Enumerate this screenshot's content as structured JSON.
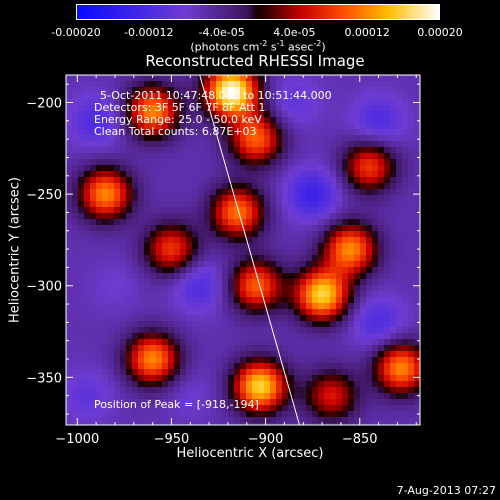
{
  "colorbar": {
    "ticks": [
      "-0.00020",
      "-0.00012",
      "-4.0e-05",
      "4.0e-05",
      "0.00012",
      "0.00020"
    ],
    "tick_values": [
      -0.0002,
      -0.00012,
      -4e-05,
      4e-05,
      0.00012,
      0.0002
    ],
    "units_prefix": "(photons cm",
    "units_exp1": "-2",
    "units_mid1": " s",
    "units_exp2": "-1",
    "units_mid2": " asec",
    "units_exp3": "-2",
    "units_suffix": ")",
    "range": [
      -0.0002,
      0.0002
    ]
  },
  "info": {
    "time": "5-Oct-2011 10:47:48.000 to 10:51:44.000",
    "detectors": "Detectors: 3F 5F 6F 7F 8F  Att 1",
    "energy": "Energy Range: 25.0 - 50.0 keV",
    "clean": "Clean    Total counts: 6.87E+03",
    "peak": "Position of Peak = [-918,-194]"
  },
  "timestamp": "7-Aug-2013 07:27",
  "chart_data": {
    "type": "heatmap",
    "title": "Reconstructed RHESSI Image",
    "xlabel": "Heliocentric X (arcsec)",
    "ylabel": "Heliocentric Y (arcsec)",
    "xlim": [
      -1006,
      -818
    ],
    "ylim": [
      -376,
      -185
    ],
    "x_ticks": [
      -1000,
      -950,
      -900,
      -850
    ],
    "y_ticks": [
      -200,
      -250,
      -300,
      -350
    ],
    "x_tick_labels": [
      "−1000",
      "−950",
      "−900",
      "−850"
    ],
    "y_tick_labels": [
      "−200",
      "−250",
      "−300",
      "−350"
    ],
    "peak_position": [
      -918,
      -194
    ],
    "limb_line": [
      [
        -935,
        -185
      ],
      [
        -882,
        -376
      ]
    ],
    "blobs": [
      {
        "x": -918,
        "y": -194,
        "value": 0.0002
      },
      {
        "x": -960,
        "y": -205,
        "value": 0.00012
      },
      {
        "x": -905,
        "y": -220,
        "value": 0.0001
      },
      {
        "x": -915,
        "y": -260,
        "value": 0.00011
      },
      {
        "x": -905,
        "y": -300,
        "value": 0.0001
      },
      {
        "x": -870,
        "y": -305,
        "value": 0.00016
      },
      {
        "x": -855,
        "y": -280,
        "value": 0.00012
      },
      {
        "x": -903,
        "y": -355,
        "value": 0.00016
      },
      {
        "x": -960,
        "y": -340,
        "value": 0.00012
      },
      {
        "x": -985,
        "y": -250,
        "value": 0.00012
      },
      {
        "x": -950,
        "y": -280,
        "value": 8e-05
      },
      {
        "x": -845,
        "y": -235,
        "value": 8e-05
      },
      {
        "x": -828,
        "y": -345,
        "value": 0.00012
      },
      {
        "x": -865,
        "y": -360,
        "value": 6e-05
      },
      {
        "x": -980,
        "y": -300,
        "value": -8e-05
      },
      {
        "x": -990,
        "y": -210,
        "value": -0.00012
      },
      {
        "x": -935,
        "y": -300,
        "value": -0.00012
      },
      {
        "x": -875,
        "y": -250,
        "value": -0.00014
      },
      {
        "x": -840,
        "y": -210,
        "value": -0.00012
      },
      {
        "x": -840,
        "y": -320,
        "value": -0.00012
      },
      {
        "x": -995,
        "y": -360,
        "value": -0.0001
      },
      {
        "x": -885,
        "y": -200,
        "value": -0.0001
      },
      {
        "x": -940,
        "y": -360,
        "value": -8e-05
      }
    ]
  }
}
